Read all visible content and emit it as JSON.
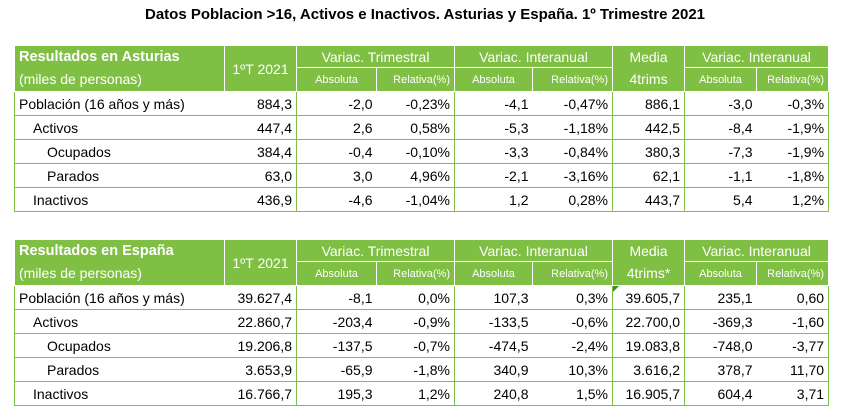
{
  "title": "Datos Poblacion >16, Activos e Inactivos. Asturias y España. 1º Trimestre 2021",
  "tables": [
    {
      "header": {
        "region": "Resultados en Asturias",
        "units": "(miles de personas)",
        "period": "1ºT 2021",
        "var_trim": "Variac. Trimestral",
        "var_inter": "Variac. Interanual",
        "media": "Media",
        "media2": "4trims",
        "var_inter2": "Variac. Interanual",
        "abs": "Absoluta",
        "rel": "Relativa(%)"
      },
      "rows": [
        {
          "label": "Población (16 años y más)",
          "v": [
            "884,3",
            "-2,0",
            "-0,23%",
            "-4,1",
            "-0,47%",
            "886,1",
            "-3,0",
            "-0,3%"
          ]
        },
        {
          "label": "Activos",
          "v": [
            "447,4",
            "2,6",
            "0,58%",
            "-5,3",
            "-1,18%",
            "442,5",
            "-8,4",
            "-1,9%"
          ]
        },
        {
          "label": "Ocupados",
          "v": [
            "384,4",
            "-0,4",
            "-0,10%",
            "-3,3",
            "-0,84%",
            "380,3",
            "-7,3",
            "-1,9%"
          ]
        },
        {
          "label": "Parados",
          "v": [
            "63,0",
            "3,0",
            "4,96%",
            "-2,1",
            "-3,16%",
            "62,1",
            "-1,1",
            "-1,8%"
          ]
        },
        {
          "label": "Inactivos",
          "v": [
            "436,9",
            "-4,6",
            "-1,04%",
            "1,2",
            "0,28%",
            "443,7",
            "5,4",
            "1,2%"
          ]
        }
      ]
    },
    {
      "header": {
        "region": "Resultados en España",
        "units": "(miles de personas)",
        "period": "1ºT 2021",
        "var_trim": "Variac. Trimestral",
        "var_inter": "Variac. Interanual",
        "media": "Media",
        "media2": "4trims*",
        "var_inter2": "Variac. Interanual",
        "abs": "Absoluta",
        "rel": "Relativa(%)"
      },
      "rows": [
        {
          "label": "Población (16 años y más)",
          "v": [
            "39.627,4",
            "-8,1",
            "0,0%",
            "107,3",
            "0,3%",
            "39.605,7",
            "235,1",
            "0,60"
          ]
        },
        {
          "label": "Activos",
          "v": [
            "22.860,7",
            "-203,4",
            "-0,9%",
            "-133,5",
            "-0,6%",
            "22.700,0",
            "-369,3",
            "-1,60"
          ]
        },
        {
          "label": "Ocupados",
          "v": [
            "19.206,8",
            "-137,5",
            "-0,7%",
            "-474,5",
            "-2,4%",
            "19.083,8",
            "-748,0",
            "-3,77"
          ]
        },
        {
          "label": "Parados",
          "v": [
            "3.653,9",
            "-65,9",
            "-1,8%",
            "340,9",
            "10,3%",
            "3.616,2",
            "378,7",
            "11,70"
          ]
        },
        {
          "label": "Inactivos",
          "v": [
            "16.766,7",
            "195,3",
            "1,2%",
            "240,8",
            "1,5%",
            "16.905,7",
            "604,4",
            "3,71"
          ]
        }
      ]
    }
  ]
}
